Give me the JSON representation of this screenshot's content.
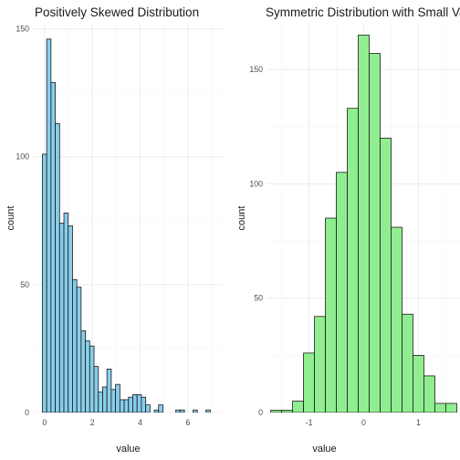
{
  "chart_data": [
    {
      "type": "bar",
      "title": "Positively Skewed Distribution",
      "xlabel": "value",
      "ylabel": "count",
      "fill": "#87CEEB",
      "bar_outline": "#1a1a1a",
      "grid": true,
      "xlim": [
        -0.45,
        7.45
      ],
      "ylim": [
        0,
        152
      ],
      "xticks": [
        0,
        2,
        4,
        6
      ],
      "xtick_labels": [
        "0",
        "2",
        "4",
        "6"
      ],
      "yticks": [
        0,
        50,
        100,
        150
      ],
      "ytick_labels": [
        "0",
        "50",
        "100",
        "150"
      ],
      "bin_width": 0.18,
      "x": [
        0.0,
        0.18,
        0.36,
        0.54,
        0.72,
        0.9,
        1.08,
        1.26,
        1.44,
        1.62,
        1.8,
        1.98,
        2.16,
        2.34,
        2.52,
        2.7,
        2.88,
        3.06,
        3.24,
        3.42,
        3.6,
        3.78,
        3.96,
        4.14,
        4.32,
        4.5,
        4.68,
        4.86,
        5.04,
        5.22,
        5.4,
        5.58,
        5.76,
        5.94,
        6.12,
        6.3,
        6.48,
        6.66,
        6.84,
        7.02
      ],
      "values": [
        101,
        146,
        129,
        113,
        74,
        78,
        73,
        52,
        49,
        32,
        28,
        26,
        18,
        8,
        10,
        17,
        9,
        11,
        5,
        5,
        6,
        7,
        7,
        6,
        3,
        0,
        1,
        3,
        0,
        0,
        0,
        1,
        1,
        0,
        0,
        1,
        0,
        0,
        1,
        0
      ]
    },
    {
      "type": "bar",
      "title": "Symmetric Distribution with Small Variance",
      "xlabel": "value",
      "ylabel": "count",
      "fill": "#90EE90",
      "bar_outline": "#1a1a1a",
      "grid": true,
      "xlim": [
        -1.76,
        1.76
      ],
      "ylim": [
        0,
        170
      ],
      "xticks": [
        -1,
        0,
        1
      ],
      "xtick_labels": [
        "-1",
        "0",
        "1"
      ],
      "yticks": [
        0,
        50,
        100,
        150
      ],
      "ytick_labels": [
        "0",
        "50",
        "100",
        "150"
      ],
      "bin_width": 0.2,
      "x": [
        -1.6,
        -1.4,
        -1.2,
        -1.0,
        -0.8,
        -0.6,
        -0.4,
        -0.2,
        0.0,
        0.2,
        0.4,
        0.6,
        0.8,
        1.0,
        1.2,
        1.4,
        1.6
      ],
      "values": [
        1,
        1,
        5,
        26,
        42,
        85,
        105,
        133,
        165,
        157,
        120,
        81,
        43,
        25,
        16,
        4,
        4
      ]
    }
  ]
}
